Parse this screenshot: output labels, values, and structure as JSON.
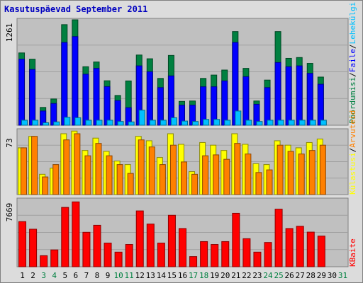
{
  "title": "Kasutuspäevad September 2011",
  "colors": {
    "background": "#dcdcdc",
    "plot_bg": "#c0c0c0",
    "title": "#0000c0",
    "visits": "#008040",
    "pages": "#0000ff",
    "files": "#00c0ff",
    "hits": "#ffff00",
    "sites": "#ff8000",
    "kbytes": "#ff0000",
    "weekday_label": "#000000",
    "weekend_label": "#008040"
  },
  "legends": {
    "top": [
      {
        "text": "Pöördumisi",
        "color": "#008040"
      },
      {
        "text": "Faile",
        "color": "#0000ff"
      },
      {
        "text": "Lehekülgi",
        "color": "#00c0ff"
      }
    ],
    "middle": [
      {
        "text": "Külastusi",
        "color": "#ffff00"
      },
      {
        "text": "Arvuteid",
        "color": "#ff8000"
      }
    ],
    "bottom": [
      {
        "text": "KBaite",
        "color": "#ff0000"
      }
    ],
    "separator": "/"
  },
  "chart_data": {
    "type": "bar",
    "title": "Kasutuspäevad September 2011",
    "days": [
      "1",
      "2",
      "3",
      "4",
      "5",
      "6",
      "7",
      "8",
      "9",
      "10",
      "11",
      "12",
      "13",
      "14",
      "15",
      "16",
      "17",
      "18",
      "19",
      "20",
      "21",
      "22",
      "23",
      "24",
      "25",
      "26",
      "27",
      "28",
      "29",
      "30",
      "31"
    ],
    "weekend_days": [
      "3",
      "4",
      "10",
      "11",
      "17",
      "18",
      "24",
      "25",
      "31"
    ],
    "panels": [
      {
        "id": "top",
        "ymax": 1261,
        "ymax_label": "1261",
        "series": [
          {
            "name": "Pöördumisi",
            "values": [
              865,
              790,
              213,
              314,
              1203,
              1261,
              700,
              757,
              532,
              356,
              530,
              840,
              795,
              560,
              835,
              285,
              290,
              560,
              600,
              660,
              1120,
              680,
              290,
              540,
              1120,
              800,
              810,
              740,
              576,
              0
            ]
          },
          {
            "name": "Faile",
            "values": [
              790,
              667,
              170,
              260,
              990,
              1060,
              610,
              680,
              462,
              295,
              210,
              710,
              640,
              450,
              590,
              240,
              240,
              460,
              460,
              530,
              990,
              580,
              250,
              450,
              750,
              700,
              710,
              620,
              490,
              0
            ]
          },
          {
            "name": "Lehekülgi",
            "values": [
              60,
              60,
              30,
              40,
              95,
              90,
              60,
              60,
              60,
              45,
              40,
              180,
              60,
              60,
              90,
              50,
              45,
              70,
              70,
              60,
              170,
              60,
              45,
              60,
              60,
              60,
              60,
              60,
              60,
              0
            ]
          }
        ]
      },
      {
        "id": "middle",
        "ymax": 73,
        "ymax_label": "73",
        "series": [
          {
            "name": "Külastusi",
            "values": [
              53,
              66,
              23,
              30,
              69,
              72,
              50,
              64,
              49,
              38,
              34,
              66,
              61,
              42,
              69,
              57,
              26,
              59,
              56,
              50,
              69,
              57,
              35,
              34,
              61,
              56,
              53,
              59,
              63,
              0
            ]
          },
          {
            "name": "Arvuteid",
            "values": [
              53,
              66,
              20,
              34,
              62,
              69,
              44,
              58,
              44,
              34,
              24,
              62,
              54,
              34,
              56,
              37,
              23,
              44,
              45,
              40,
              58,
              46,
              25,
              28,
              56,
              49,
              46,
              50,
              56,
              0
            ]
          }
        ]
      },
      {
        "id": "bottom",
        "ymax": 7669,
        "ymax_label": "7669",
        "series": [
          {
            "name": "KBaite",
            "values": [
              5150,
              4280,
              1260,
              1920,
              6770,
              7400,
              3930,
              4730,
              2700,
              1670,
              2540,
              6370,
              4870,
              2700,
              5870,
              4360,
              1160,
              2870,
              2540,
              2870,
              6100,
              3200,
              1670,
              2770,
              6570,
              4360,
              4620,
              3950,
              3500,
              0
            ]
          }
        ]
      }
    ]
  }
}
